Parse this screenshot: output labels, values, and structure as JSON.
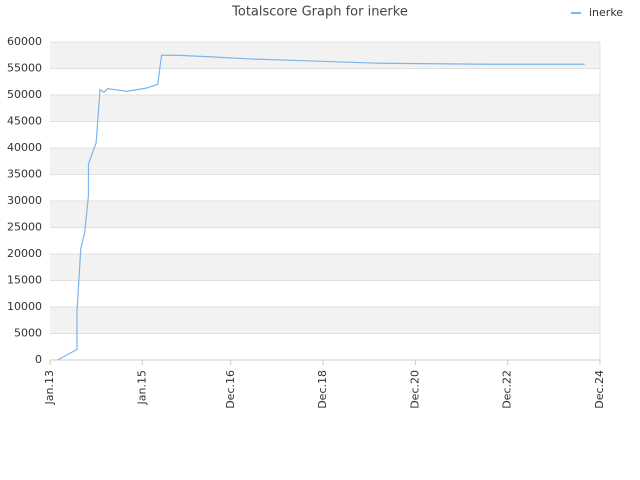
{
  "chart_data": {
    "type": "line",
    "title": "Totalscore Graph for inerke",
    "x": [
      "2013-03",
      "2013-08",
      "2013-08",
      "2013-09",
      "2013-10",
      "2013-11",
      "2013-11",
      "2014-01",
      "2014-02",
      "2014-03",
      "2014-04",
      "2014-09",
      "2015-02",
      "2015-05",
      "2015-06",
      "2015-10",
      "2016-07",
      "2017-05",
      "2018-06",
      "2020-02",
      "2022-07",
      "2024-08"
    ],
    "series": [
      {
        "name": "inerke",
        "color": "#7cb5ec",
        "values": [
          0,
          2000,
          9000,
          21000,
          24000,
          31000,
          37000,
          41000,
          51000,
          50500,
          51200,
          50700,
          51300,
          52000,
          57500,
          57500,
          57200,
          56800,
          56500,
          56000,
          55800,
          55800
        ]
      }
    ],
    "xlim": [
      "2013-01",
      "2024-12"
    ],
    "xticks": [
      {
        "value": "2013-01",
        "label": "Jan.13"
      },
      {
        "value": "2015-01",
        "label": "Jan.15"
      },
      {
        "value": "2016-12",
        "label": "Dec.16"
      },
      {
        "value": "2018-12",
        "label": "Dec.18"
      },
      {
        "value": "2020-12",
        "label": "Dec.20"
      },
      {
        "value": "2022-12",
        "label": "Dec.22"
      },
      {
        "value": "2024-12",
        "label": "Dec.24"
      }
    ],
    "ylim": [
      0,
      60000
    ],
    "yticks": [
      0,
      5000,
      10000,
      15000,
      20000,
      25000,
      30000,
      35000,
      40000,
      45000,
      50000,
      55000,
      60000
    ],
    "grid": true,
    "legend": "top-right"
  }
}
